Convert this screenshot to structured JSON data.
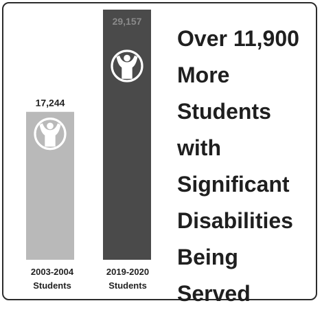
{
  "chart_data": {
    "type": "bar",
    "categories": [
      "2003-2004 Students",
      "2019-2020 Students"
    ],
    "category_lines": [
      [
        "2003-2004",
        "Students"
      ],
      [
        "2019-2020",
        "Students"
      ]
    ],
    "values": [
      17244,
      29157
    ],
    "value_labels": [
      "17,244",
      "29,157"
    ],
    "bar_colors": [
      "#b9b9b9",
      "#4a4a4a"
    ],
    "ylim": [
      0,
      29157
    ],
    "title": "",
    "xlabel": "",
    "ylabel": "",
    "grid": false,
    "icon": "child-figure-icon"
  },
  "headline_lines": [
    "Over 11,900",
    "More",
    "Students",
    "with",
    "Significant",
    "Disabilities",
    "Being",
    "Served"
  ]
}
